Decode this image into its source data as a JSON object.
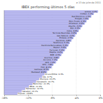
{
  "chart_data": {
    "type": "bar",
    "orientation": "horizontal",
    "title": "IBEX performing últimos 5 días",
    "subtitle": "a 13 de julio de 2011",
    "categories": [
      "Grifols",
      "Inditex",
      "Red Eléctrica",
      "Enagás",
      "Ebro Foods",
      "Amadeus",
      "Abertis",
      "DIA",
      "Indra",
      "Técnicas Reunidas",
      "Gas Natural",
      "Endesa",
      "Iberdrola",
      "Telefónica",
      "Iberdrola Renovables",
      "Repsol",
      "Ferrovial",
      "Mapfre",
      "BME",
      "Acerinox",
      "Acciona",
      "ACS",
      "OHL",
      "FCC",
      "Gamesa",
      "Mediaset",
      "ArcelorMittal",
      "IAG",
      "Abengoa",
      "Caixabank",
      "Bankinter",
      "BBVA",
      "Santander",
      "Sabadell",
      "Popular"
    ],
    "values": [
      -0.4,
      -1.1,
      -1.5,
      -1.9,
      -2.3,
      -2.6,
      -3.0,
      -3.3,
      -3.6,
      -3.9,
      -4.2,
      -4.5,
      -4.8,
      -5.1,
      -5.3,
      -5.6,
      -5.9,
      -6.2,
      -6.5,
      -6.8,
      -7.1,
      -7.4,
      -7.8,
      -8.1,
      -8.5,
      -8.9,
      -9.3,
      -9.7,
      -10.2,
      -10.7,
      -11.3,
      -11.9,
      -12.5,
      -13.1,
      -13.8
    ],
    "value_labels": [
      "-0.4%",
      "-1.1%",
      "-1.5%",
      "-1.9%",
      "-2.3%",
      "-2.6%",
      "-3.0%",
      "-3.3%",
      "-3.6%",
      "-3.9%",
      "-4.2%",
      "-4.5%",
      "-4.8%",
      "-5.1%",
      "-5.3%",
      "-5.6%",
      "-5.9%",
      "-6.2%",
      "-6.5%",
      "-6.8%",
      "-7.1%",
      "-7.4%",
      "-7.8%",
      "-8.1%",
      "-8.5%",
      "-8.9%",
      "-9.3%",
      "-9.7%",
      "-10.2%",
      "-10.7%",
      "-11.3%",
      "-11.9%",
      "-12.5%",
      "-13.1%",
      "-13.8%"
    ],
    "color": "#b8b8f0",
    "xlim": [
      -16,
      0
    ],
    "xticks": [
      {
        "value": -16,
        "label": "-16%"
      },
      {
        "value": -12,
        "label": "-12%"
      },
      {
        "value": -8,
        "label": "-8%"
      },
      {
        "value": -4,
        "label": "-4%"
      },
      {
        "value": 0,
        "label": "0%"
      }
    ],
    "grid": true,
    "data_labels": true,
    "tick_labels": "x"
  }
}
